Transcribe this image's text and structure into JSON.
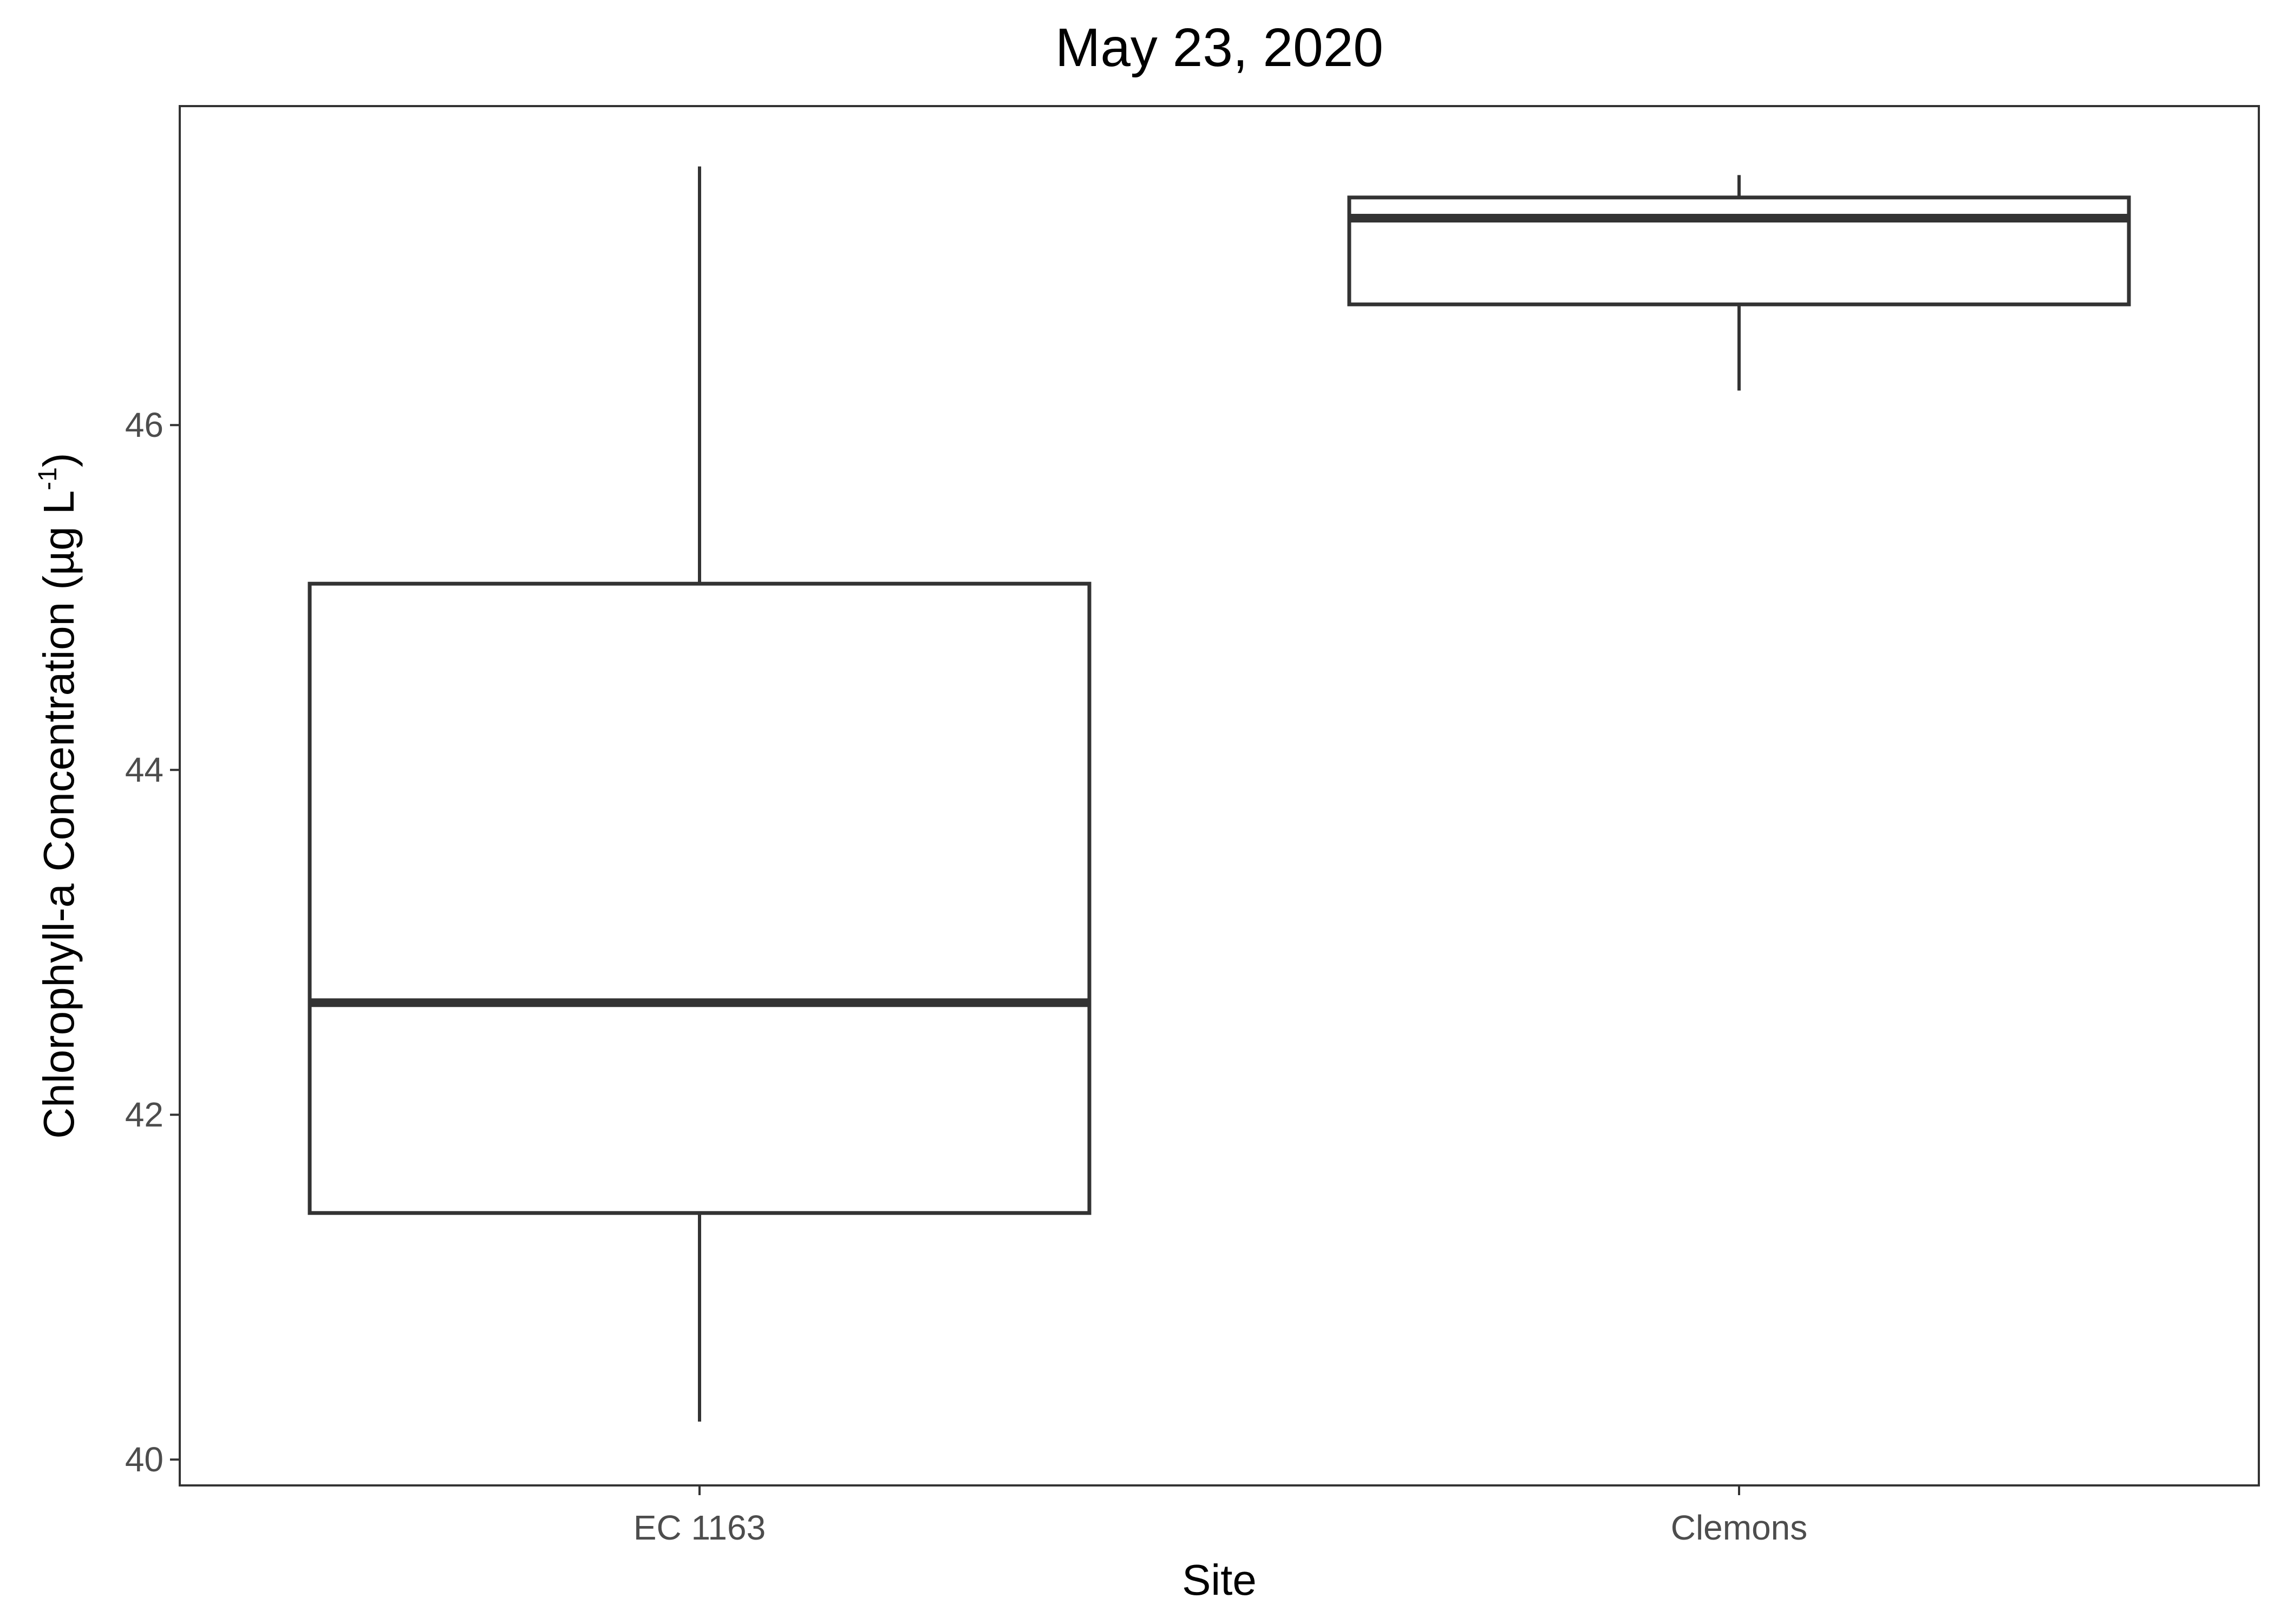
{
  "chart_data": {
    "type": "boxplot",
    "title": "May 23, 2020",
    "xlabel": "Site",
    "ylabel_main": "Chlorophyll-a Concentration (µg L",
    "ylabel_sup": "-1",
    "ylabel_close": ")",
    "ylim": [
      39.85,
      47.85
    ],
    "yticks": [
      40,
      42,
      44,
      46
    ],
    "categories": [
      "EC 1163",
      "Clemons"
    ],
    "boxes": [
      {
        "category": "EC 1163",
        "min": 40.22,
        "q1": 41.43,
        "median": 42.65,
        "q3": 45.08,
        "max": 47.5
      },
      {
        "category": "Clemons",
        "min": 46.2,
        "q1": 46.7,
        "median": 47.2,
        "q3": 47.32,
        "max": 47.45
      }
    ],
    "grid": false,
    "colors": {
      "stroke": "#333333",
      "fill": "#ffffff",
      "tick_text": "#4d4d4d"
    }
  }
}
